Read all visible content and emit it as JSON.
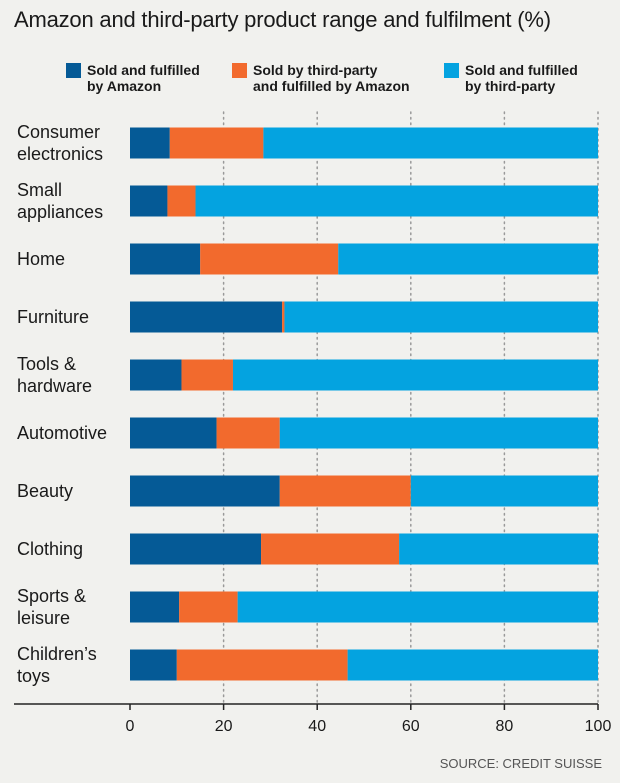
{
  "title": "Amazon and third-party product range and fulfilment (%)",
  "source": "SOURCE: CREDIT SUISSE",
  "colors": {
    "sold_fulfilled_amazon": "#055a96",
    "sold_third_fulfilled_amazon": "#f26a2d",
    "sold_fulfilled_third": "#04a3e0",
    "background": "#f1f1ee"
  },
  "legend": [
    {
      "label": "Sold and fulfilled\nby Amazon",
      "color": "#055a96"
    },
    {
      "label": "Sold by third-party\nand fulfilled by Amazon",
      "color": "#f26a2d"
    },
    {
      "label": "Sold and fulfilled\nby third-party",
      "color": "#04a3e0"
    }
  ],
  "chart_data": {
    "type": "bar",
    "orientation": "horizontal",
    "stacked": true,
    "title": "Amazon and third-party product range and fulfilment (%)",
    "categories": [
      "Consumer\nelectronics",
      "Small\nappliances",
      "Home",
      "Furniture",
      "Tools &\nhardware",
      "Automotive",
      "Beauty",
      "Clothing",
      "Sports &\nleisure",
      "Children’s\ntoys"
    ],
    "series": [
      {
        "name": "Sold and fulfilled by Amazon",
        "color": "#055a96",
        "values": [
          8.5,
          8,
          15,
          32.5,
          11,
          18.5,
          32,
          28,
          10.5,
          10
        ]
      },
      {
        "name": "Sold by third-party and fulfilled by Amazon",
        "color": "#f26a2d",
        "values": [
          20,
          6,
          29.5,
          0.5,
          11,
          13.5,
          28,
          29.5,
          12.5,
          36.5
        ]
      },
      {
        "name": "Sold and fulfilled by third-party",
        "color": "#04a3e0",
        "values": [
          71.5,
          86,
          55.5,
          67,
          78,
          68,
          40,
          42.5,
          77,
          53.5
        ]
      }
    ],
    "xlim": [
      0,
      100
    ],
    "xticks": [
      0,
      20,
      40,
      60,
      80,
      100
    ],
    "grid": "vertical dotted",
    "legend_position": "top"
  }
}
